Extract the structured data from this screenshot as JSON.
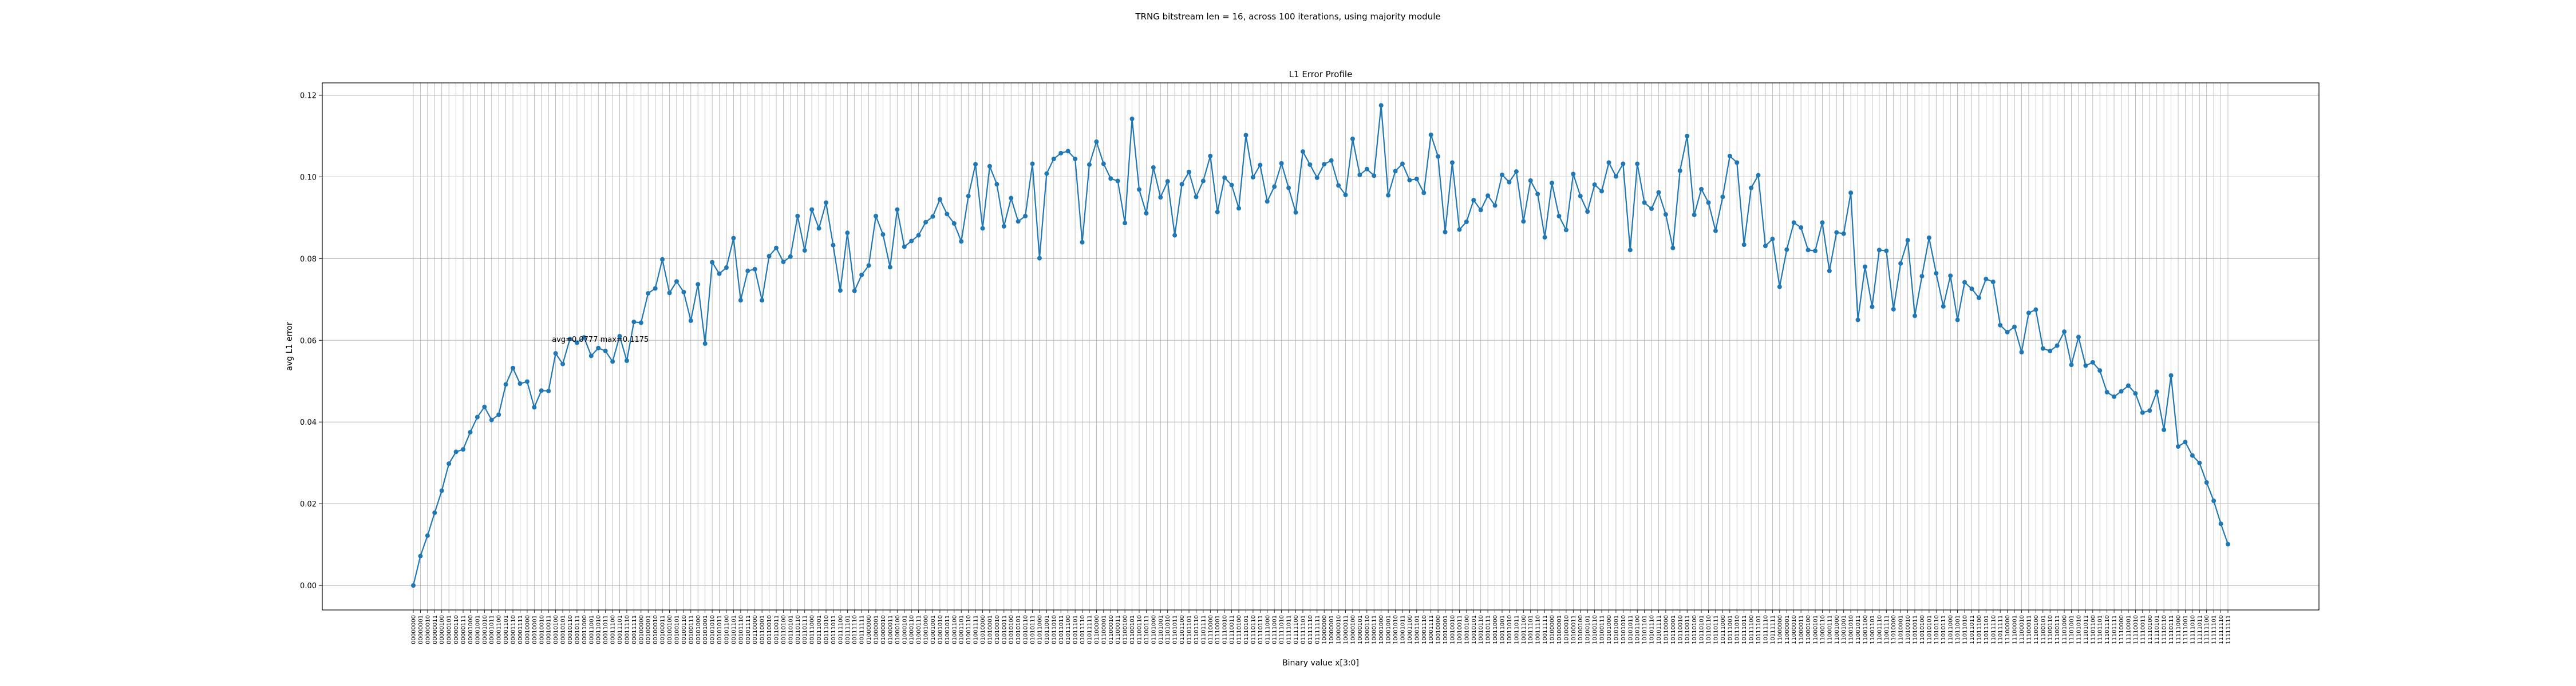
{
  "figure": {
    "suptitle": "TRNG bitstream len = 16, across 100 iterations, using majority module"
  },
  "chart_data": {
    "type": "line",
    "title": "L1 Error Profile",
    "xlabel": "Binary value x[3:0]",
    "ylabel": "avg L1 error",
    "ylim": [
      -0.006,
      0.123
    ],
    "yticks": [
      "0.00",
      "0.02",
      "0.04",
      "0.06",
      "0.08",
      "0.10",
      "0.12"
    ],
    "grid": true,
    "line_color": "#1f77b4",
    "annotation": {
      "text": "avg=0.0777 max=0.1175",
      "x_index": 19,
      "y": 0.0585
    },
    "categories": [
      "00000000",
      "00000001",
      "00000010",
      "00000011",
      "00000100",
      "00000101",
      "00000110",
      "00000111",
      "00001000",
      "00001001",
      "00001010",
      "00001011",
      "00001100",
      "00001101",
      "00001110",
      "00001111",
      "00010000",
      "00010001",
      "00010010",
      "00010011",
      "00010100",
      "00010101",
      "00010110",
      "00010111",
      "00011000",
      "00011001",
      "00011010",
      "00011011",
      "00011100",
      "00011101",
      "00011110",
      "00011111",
      "00100000",
      "00100001",
      "00100010",
      "00100011",
      "00100100",
      "00100101",
      "00100110",
      "00100111",
      "00101000",
      "00101001",
      "00101010",
      "00101011",
      "00101100",
      "00101101",
      "00101110",
      "00101111",
      "00110000",
      "00110001",
      "00110010",
      "00110011",
      "00110100",
      "00110101",
      "00110110",
      "00110111",
      "00111000",
      "00111001",
      "00111010",
      "00111011",
      "00111100",
      "00111101",
      "00111110",
      "00111111",
      "01000000",
      "01000001",
      "01000010",
      "01000011",
      "01000100",
      "01000101",
      "01000110",
      "01000111",
      "01001000",
      "01001001",
      "01001010",
      "01001011",
      "01001100",
      "01001101",
      "01001110",
      "01001111",
      "01010000",
      "01010001",
      "01010010",
      "01010011",
      "01010100",
      "01010101",
      "01010110",
      "01010111",
      "01011000",
      "01011001",
      "01011010",
      "01011011",
      "01011100",
      "01011101",
      "01011110",
      "01011111",
      "01100000",
      "01100001",
      "01100010",
      "01100011",
      "01100100",
      "01100101",
      "01100110",
      "01100111",
      "01101000",
      "01101001",
      "01101010",
      "01101011",
      "01101100",
      "01101101",
      "01101110",
      "01101111",
      "01110000",
      "01110001",
      "01110010",
      "01110011",
      "01110100",
      "01110101",
      "01110110",
      "01110111",
      "01111000",
      "01111001",
      "01111010",
      "01111011",
      "01111100",
      "01111101",
      "01111110",
      "01111111",
      "10000000",
      "10000001",
      "10000010",
      "10000011",
      "10000100",
      "10000101",
      "10000110",
      "10000111",
      "10001000",
      "10001001",
      "10001010",
      "10001011",
      "10001100",
      "10001101",
      "10001110",
      "10001111",
      "10010000",
      "10010001",
      "10010010",
      "10010011",
      "10010100",
      "10010101",
      "10010110",
      "10010111",
      "10011000",
      "10011001",
      "10011010",
      "10011011",
      "10011100",
      "10011101",
      "10011110",
      "10011111",
      "10100000",
      "10100001",
      "10100010",
      "10100011",
      "10100100",
      "10100101",
      "10100110",
      "10100111",
      "10101000",
      "10101001",
      "10101010",
      "10101011",
      "10101100",
      "10101101",
      "10101110",
      "10101111",
      "10110000",
      "10110001",
      "10110010",
      "10110011",
      "10110100",
      "10110101",
      "10110110",
      "10110111",
      "10111000",
      "10111001",
      "10111010",
      "10111011",
      "10111100",
      "10111101",
      "10111110",
      "10111111",
      "11000000",
      "11000001",
      "11000010",
      "11000011",
      "11000100",
      "11000101",
      "11000110",
      "11000111",
      "11001000",
      "11001001",
      "11001010",
      "11001011",
      "11001100",
      "11001101",
      "11001110",
      "11001111",
      "11010000",
      "11010001",
      "11010010",
      "11010011",
      "11010100",
      "11010101",
      "11010110",
      "11010111",
      "11011000",
      "11011001",
      "11011010",
      "11011011",
      "11011100",
      "11011101",
      "11011110",
      "11011111",
      "11100000",
      "11100001",
      "11100010",
      "11100011",
      "11100100",
      "11100101",
      "11100110",
      "11100111",
      "11101000",
      "11101001",
      "11101010",
      "11101011",
      "11101100",
      "11101101",
      "11101110",
      "11101111",
      "11110000",
      "11110001",
      "11110010",
      "11110011",
      "11110100",
      "11110101",
      "11110110",
      "11110111",
      "11111000",
      "11111001",
      "11111010",
      "11111011",
      "11111100",
      "11111101",
      "11111110",
      "11111111"
    ],
    "values": [
      0.0,
      0.0072,
      0.0122,
      0.0178,
      0.0232,
      0.0298,
      0.0327,
      0.0333,
      0.0375,
      0.0412,
      0.0437,
      0.0405,
      0.0418,
      0.0492,
      0.0532,
      0.0494,
      0.0499,
      0.0436,
      0.0477,
      0.0476,
      0.0568,
      0.0542,
      0.0603,
      0.0594,
      0.0607,
      0.0562,
      0.0581,
      0.0574,
      0.0548,
      0.061,
      0.055,
      0.0645,
      0.0643,
      0.0715,
      0.0727,
      0.0798,
      0.0716,
      0.0744,
      0.0718,
      0.0648,
      0.0737,
      0.0592,
      0.0791,
      0.0763,
      0.0778,
      0.085,
      0.0698,
      0.077,
      0.0774,
      0.0698,
      0.0806,
      0.0826,
      0.0792,
      0.0805,
      0.0904,
      0.082,
      0.092,
      0.0874,
      0.0937,
      0.0833,
      0.0722,
      0.0863,
      0.0721,
      0.076,
      0.0783,
      0.0904,
      0.0859,
      0.0779,
      0.092,
      0.0829,
      0.0843,
      0.0857,
      0.0889,
      0.0903,
      0.0945,
      0.0909,
      0.0886,
      0.0842,
      0.0953,
      0.1031,
      0.0874,
      0.1026,
      0.0982,
      0.0879,
      0.0948,
      0.0891,
      0.0904,
      0.1032,
      0.0801,
      0.1008,
      0.1044,
      0.1058,
      0.1063,
      0.1044,
      0.084,
      0.103,
      0.1086,
      0.1032,
      0.0996,
      0.099,
      0.0887,
      0.1142,
      0.0969,
      0.0911,
      0.1023,
      0.095,
      0.0989,
      0.0857,
      0.0982,
      0.1012,
      0.0951,
      0.099,
      0.1051,
      0.0914,
      0.0998,
      0.098,
      0.0923,
      0.1102,
      0.0999,
      0.1029,
      0.094,
      0.0976,
      0.1033,
      0.0973,
      0.0913,
      0.1062,
      0.103,
      0.0998,
      0.1031,
      0.104,
      0.0979,
      0.0956,
      0.1093,
      0.1005,
      0.1019,
      0.1003,
      0.1175,
      0.0955,
      0.1014,
      0.1032,
      0.0992,
      0.0995,
      0.0961,
      0.1103,
      0.105,
      0.0865,
      0.1035,
      0.0871,
      0.089,
      0.0943,
      0.0919,
      0.0954,
      0.093,
      0.1005,
      0.0987,
      0.1013,
      0.0891,
      0.0991,
      0.0958,
      0.0852,
      0.0985,
      0.0904,
      0.087,
      0.1007,
      0.0953,
      0.0915,
      0.0981,
      0.0965,
      0.1035,
      0.1001,
      0.1032,
      0.0821,
      0.1032,
      0.0937,
      0.0922,
      0.0962,
      0.0908,
      0.0826,
      0.1015,
      0.11,
      0.0907,
      0.097,
      0.0937,
      0.0868,
      0.0951,
      0.1051,
      0.1035,
      0.0834,
      0.0973,
      0.1004,
      0.0831,
      0.0848,
      0.0731,
      0.0822,
      0.0888,
      0.0876,
      0.0821,
      0.0819,
      0.0888,
      0.077,
      0.0864,
      0.0861,
      0.0961,
      0.065,
      0.078,
      0.0682,
      0.0821,
      0.0819,
      0.0676,
      0.0788,
      0.0845,
      0.066,
      0.0757,
      0.0851,
      0.0764,
      0.0683,
      0.0758,
      0.065,
      0.0742,
      0.0726,
      0.0704,
      0.075,
      0.0743,
      0.0637,
      0.062,
      0.0633,
      0.0571,
      0.0667,
      0.0675,
      0.058,
      0.0574,
      0.0587,
      0.0621,
      0.054,
      0.0608,
      0.0538,
      0.0546,
      0.0526,
      0.0473,
      0.0462,
      0.0475,
      0.0489,
      0.047,
      0.0423,
      0.0428,
      0.0474,
      0.0381,
      0.0514,
      0.034,
      0.0351,
      0.0318,
      0.03,
      0.0252,
      0.0207,
      0.0151,
      0.0101
    ]
  }
}
